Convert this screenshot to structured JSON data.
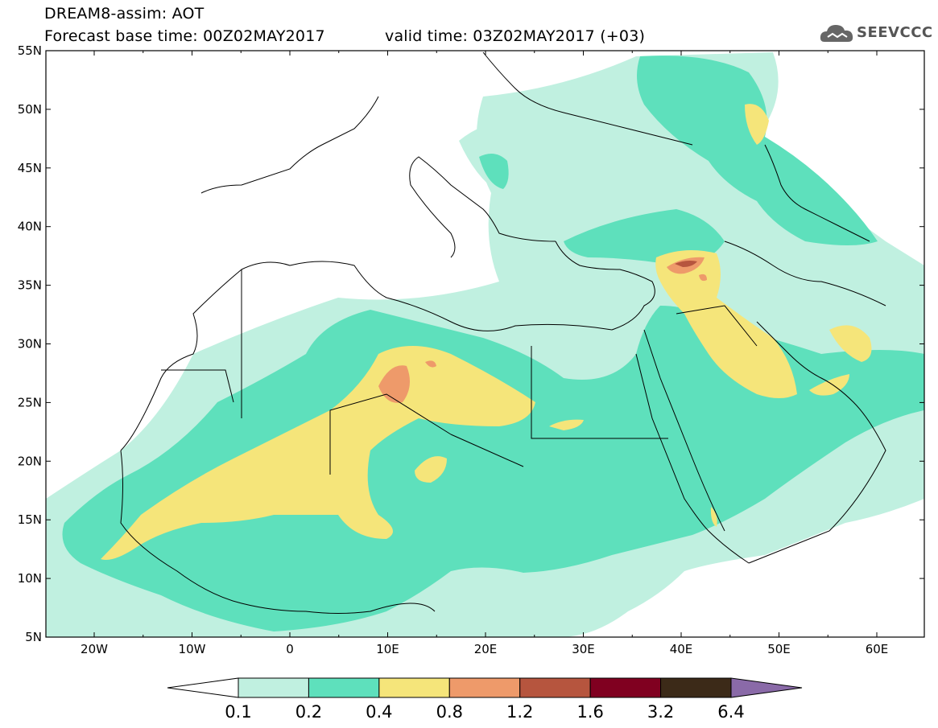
{
  "header": {
    "line1": "DREAM8-assim: AOT",
    "line2": "Forecast base time: 00Z02MAY2017",
    "line3": "valid time: 03Z02MAY2017 (+03)"
  },
  "logo": {
    "text": "SEEVCCC",
    "icon": "cloud-icon"
  },
  "map": {
    "lat_labels": [
      "55N",
      "50N",
      "45N",
      "40N",
      "35N",
      "30N",
      "25N",
      "20N",
      "15N",
      "10N",
      "5N"
    ],
    "lon_labels": [
      "20W",
      "10W",
      "0",
      "10E",
      "20E",
      "30E",
      "40E",
      "50E",
      "60E"
    ]
  },
  "colorbar": {
    "levels": [
      "0.1",
      "0.2",
      "0.4",
      "0.8",
      "1.2",
      "1.6",
      "3.2",
      "6.4"
    ],
    "colors": [
      "#ffffff",
      "#c0f0e0",
      "#5ee0bc",
      "#f5e57a",
      "#ee9a6a",
      "#b6553e",
      "#800020",
      "#3c2a18",
      "#8a6aa8"
    ]
  }
}
